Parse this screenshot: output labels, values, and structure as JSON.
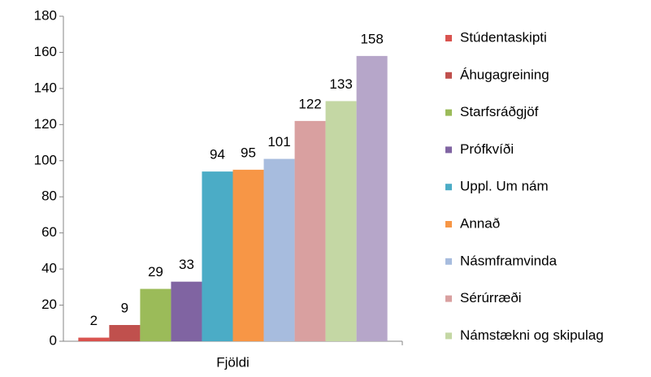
{
  "chart_data": {
    "type": "bar",
    "categories": [
      "Fjöldi"
    ],
    "series": [
      {
        "name": "Stúdentaskipti",
        "color": "#d9534f",
        "values": [
          2
        ]
      },
      {
        "name": "Áhugagreining",
        "color": "#c0504d",
        "values": [
          9
        ]
      },
      {
        "name": "Starfsráðgjöf",
        "color": "#9bbb59",
        "values": [
          29
        ]
      },
      {
        "name": "Prófkvíði",
        "color": "#8064a2",
        "values": [
          33
        ]
      },
      {
        "name": "Uppl. Um nám",
        "color": "#4bacc6",
        "values": [
          94
        ]
      },
      {
        "name": "Annað",
        "color": "#f79646",
        "values": [
          95
        ]
      },
      {
        "name": "Násmframvinda",
        "color": "#a7bcde",
        "values": [
          101
        ]
      },
      {
        "name": "Sérúrræði",
        "color": "#d9a0a0",
        "values": [
          122
        ]
      },
      {
        "name": "Námstækni og skipulag",
        "color": "#c4d7a4",
        "values": [
          133
        ]
      },
      {
        "name": null,
        "color": "#b6a6c9",
        "values": [
          158
        ]
      }
    ],
    "ylim": [
      0,
      180
    ],
    "yticks": [
      0,
      20,
      40,
      60,
      80,
      100,
      120,
      140,
      160,
      180
    ],
    "grid": false
  }
}
